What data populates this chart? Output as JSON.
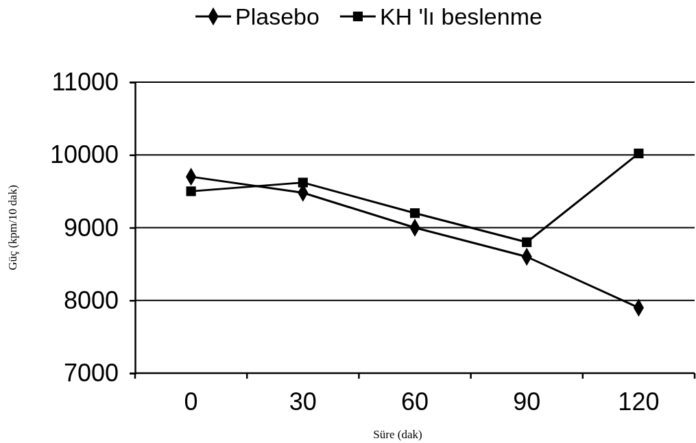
{
  "chart_data": {
    "type": "line",
    "xlabel": "Süre (dak)",
    "ylabel": "Güç (kpm/10 dak)",
    "categories": [
      "0",
      "30",
      "60",
      "90",
      "120"
    ],
    "series": [
      {
        "name": "Plasebo",
        "color": "#000000",
        "marker": "diamond",
        "values": [
          9700,
          9480,
          9000,
          8600,
          7900
        ]
      },
      {
        "name": "KH 'lı beslenme",
        "color": "#000000",
        "marker": "square",
        "values": [
          9500,
          9620,
          9200,
          8800,
          10020
        ]
      }
    ],
    "ylim": [
      7000,
      11000
    ],
    "yticks": [
      7000,
      8000,
      9000,
      10000,
      11000
    ],
    "grid": "y",
    "legend": "top",
    "line_style": "solid"
  }
}
